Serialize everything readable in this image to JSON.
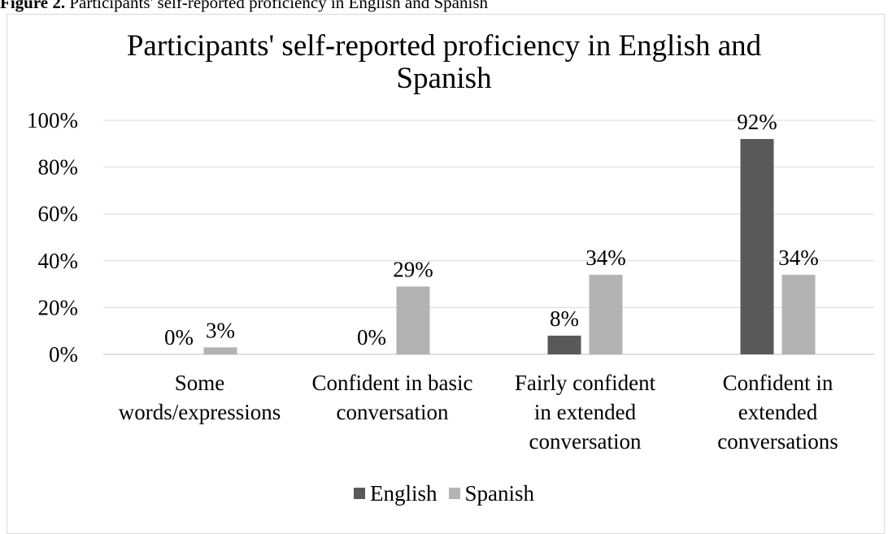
{
  "caption": {
    "label": "Figure 2.",
    "text": " Participants' self-reported proficiency in English and Spanish"
  },
  "chart_data": {
    "type": "bar",
    "title_lines": [
      "Participants' self-reported proficiency in English and",
      "Spanish"
    ],
    "categories": [
      [
        "Some",
        "words/expressions"
      ],
      [
        "Confident in basic",
        "conversation"
      ],
      [
        "Fairly confident",
        "in extended",
        "conversation"
      ],
      [
        "Confident in",
        "extended",
        "conversations"
      ]
    ],
    "series": [
      {
        "name": "English",
        "color": "#595959",
        "values": [
          0,
          0,
          8,
          92
        ],
        "labels": [
          "0%",
          "0%",
          "8%",
          "92%"
        ]
      },
      {
        "name": "Spanish",
        "color": "#b3b3b3",
        "values": [
          3,
          29,
          34,
          34
        ],
        "labels": [
          "3%",
          "29%",
          "34%",
          "34%"
        ]
      }
    ],
    "ylim": [
      0,
      100
    ],
    "yticks": [
      0,
      20,
      40,
      60,
      80,
      100
    ],
    "ytick_labels": [
      "0%",
      "20%",
      "40%",
      "60%",
      "80%",
      "100%"
    ],
    "grid": true,
    "legend_position": "bottom",
    "xlabel": "",
    "ylabel": ""
  }
}
